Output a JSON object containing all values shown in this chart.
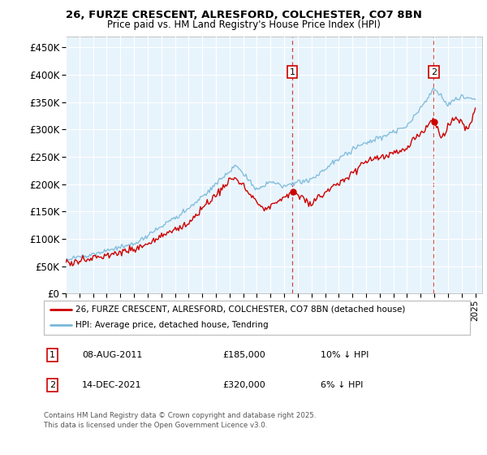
{
  "title_line1": "26, FURZE CRESCENT, ALRESFORD, COLCHESTER, CO7 8BN",
  "title_line2": "Price paid vs. HM Land Registry's House Price Index (HPI)",
  "ylabel_ticks": [
    "£0",
    "£50K",
    "£100K",
    "£150K",
    "£200K",
    "£250K",
    "£300K",
    "£350K",
    "£400K",
    "£450K"
  ],
  "ytick_values": [
    0,
    50000,
    100000,
    150000,
    200000,
    250000,
    300000,
    350000,
    400000,
    450000
  ],
  "xlim_start": 1995.0,
  "xlim_end": 2025.5,
  "ylim": [
    0,
    470000
  ],
  "hpi_color": "#7ab8d9",
  "price_color": "#cc0000",
  "marker1_date": 2011.6,
  "marker1_price": 185000,
  "marker1_label": "1",
  "marker2_date": 2021.95,
  "marker2_price": 320000,
  "marker2_label": "2",
  "legend_line1": "26, FURZE CRESCENT, ALRESFORD, COLCHESTER, CO7 8BN (detached house)",
  "legend_line2": "HPI: Average price, detached house, Tendring",
  "footer": "Contains HM Land Registry data © Crown copyright and database right 2025.\nThis data is licensed under the Open Government Licence v3.0.",
  "plot_bg": "#e8f4fc",
  "fig_bg": "#ffffff"
}
